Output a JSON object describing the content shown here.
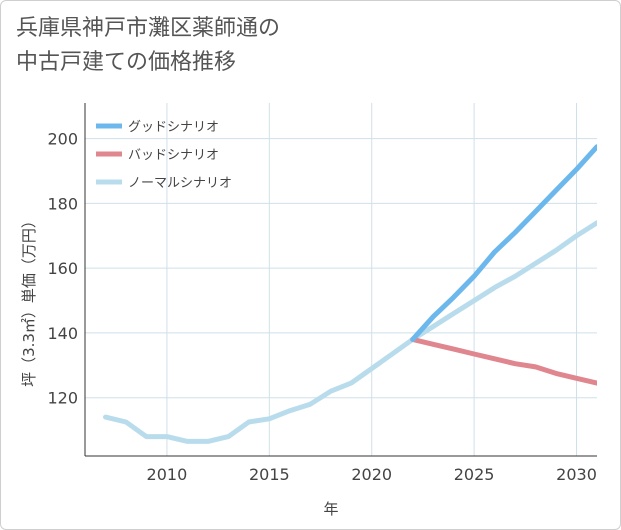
{
  "title_lines": [
    "兵庫県神戸市灘区薬師通の",
    "中古戸建ての価格推移"
  ],
  "chart_data": {
    "type": "line",
    "title": "兵庫県神戸市灘区薬師通の中古戸建ての価格推移",
    "xlabel": "年",
    "ylabel": "坪（3.3㎡）単価（万円）",
    "xlim": [
      2006,
      2031
    ],
    "ylim": [
      102,
      211
    ],
    "x_ticks": [
      2010,
      2015,
      2020,
      2025,
      2030
    ],
    "y_ticks": [
      120,
      140,
      160,
      180,
      200
    ],
    "grid": true,
    "legend_position": "top-left",
    "series": [
      {
        "name": "グッドシナリオ",
        "color": "#6cb8ec",
        "x": [
          2022,
          2023,
          2024,
          2025,
          2026,
          2027,
          2028,
          2029,
          2030,
          2031
        ],
        "values": [
          138,
          145,
          151,
          157.5,
          165,
          171,
          177.5,
          184,
          190.5,
          197.5
        ]
      },
      {
        "name": "バッドシナリオ",
        "color": "#e0868e",
        "x": [
          2022,
          2023,
          2024,
          2025,
          2026,
          2027,
          2028,
          2029,
          2030,
          2031
        ],
        "values": [
          138,
          136.5,
          135,
          133.5,
          132,
          130.5,
          129.5,
          127.5,
          126,
          124.5
        ]
      },
      {
        "name": "ノーマルシナリオ",
        "color": "#b9dcec",
        "x": [
          2007,
          2008,
          2009,
          2010,
          2011,
          2012,
          2013,
          2014,
          2015,
          2016,
          2017,
          2018,
          2019,
          2020,
          2021,
          2022,
          2023,
          2024,
          2025,
          2026,
          2027,
          2028,
          2029,
          2030,
          2031
        ],
        "values": [
          114,
          112.5,
          108,
          108,
          106.5,
          106.5,
          108,
          112.5,
          113.5,
          116,
          118,
          122,
          124.5,
          129,
          133.5,
          138,
          142,
          146,
          150,
          154,
          157.5,
          161.5,
          165.5,
          170,
          174
        ]
      }
    ]
  }
}
